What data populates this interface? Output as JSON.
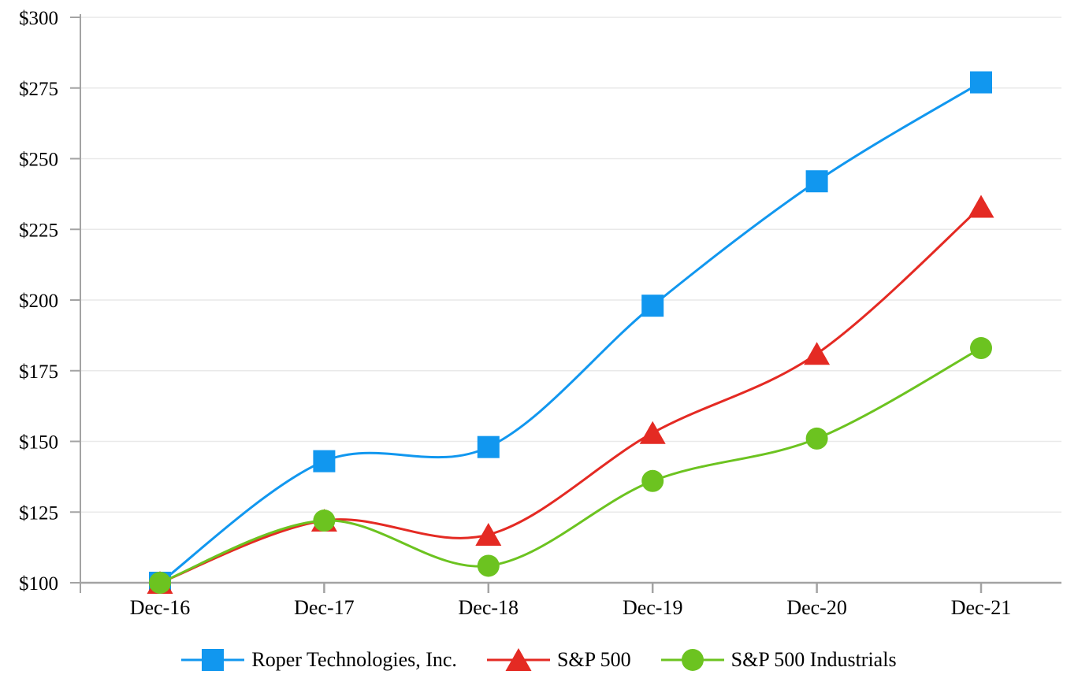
{
  "chart_data": {
    "type": "line",
    "title": "",
    "subtitle": "",
    "smooth_lines": true,
    "grid": true,
    "legend_position": "bottom",
    "categories": [
      "Dec-16",
      "Dec-17",
      "Dec-18",
      "Dec-19",
      "Dec-20",
      "Dec-21"
    ],
    "series": [
      {
        "name": "Roper Technologies, Inc.",
        "marker": "square",
        "color": "#1197EF",
        "values": [
          100,
          143,
          148,
          198,
          242,
          277
        ]
      },
      {
        "name": "S&P 500",
        "marker": "triangle",
        "color": "#E42A23",
        "values": [
          100,
          122,
          117,
          153,
          181,
          233
        ]
      },
      {
        "name": "S&P 500 Industrials",
        "marker": "circle",
        "color": "#6CC320",
        "values": [
          100,
          122,
          106,
          136,
          151,
          183
        ]
      }
    ],
    "y_axis": {
      "min": 100,
      "max": 300,
      "step": 25,
      "tick_labels": [
        "$100",
        "$125",
        "$150",
        "$175",
        "$200",
        "$225",
        "$250",
        "$275",
        "$300"
      ]
    },
    "x_axis": {
      "tick_labels": [
        "Dec-16",
        "Dec-17",
        "Dec-18",
        "Dec-19",
        "Dec-20",
        "Dec-21"
      ]
    }
  },
  "colors": {
    "background": "#FFFFFF",
    "gridline": "#E9E9E9",
    "axis": "#A3A3A3",
    "text": "#000000"
  }
}
